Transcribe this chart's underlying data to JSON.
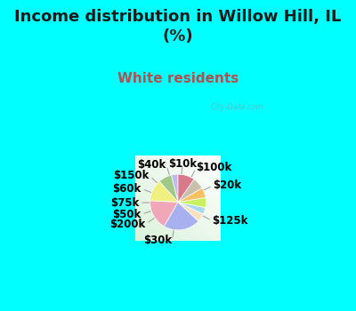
{
  "title": "Income distribution in Willow Hill, IL\n(%)",
  "subtitle": "White residents",
  "bg_cyan": "#00ffff",
  "labels": [
    "$10k",
    "$100k",
    "$20k",
    "$125k",
    "$30k",
    "$200k",
    "$50k",
    "$75k",
    "$60k",
    "$150k",
    "$40k"
  ],
  "sizes": [
    4,
    8,
    13,
    18,
    22,
    5,
    4,
    6,
    6,
    7,
    10
  ],
  "colors": [
    "#c0b8f0",
    "#a0c888",
    "#f0f080",
    "#f0a8b8",
    "#a8b0f0",
    "#f8e0c0",
    "#a8d8f0",
    "#c8f060",
    "#f8c060",
    "#c8c0a8",
    "#d87888"
  ],
  "startangle": 90,
  "title_fontsize": 13,
  "subtitle_fontsize": 11,
  "label_fontsize": 8.5,
  "watermark": "City-Data.com"
}
